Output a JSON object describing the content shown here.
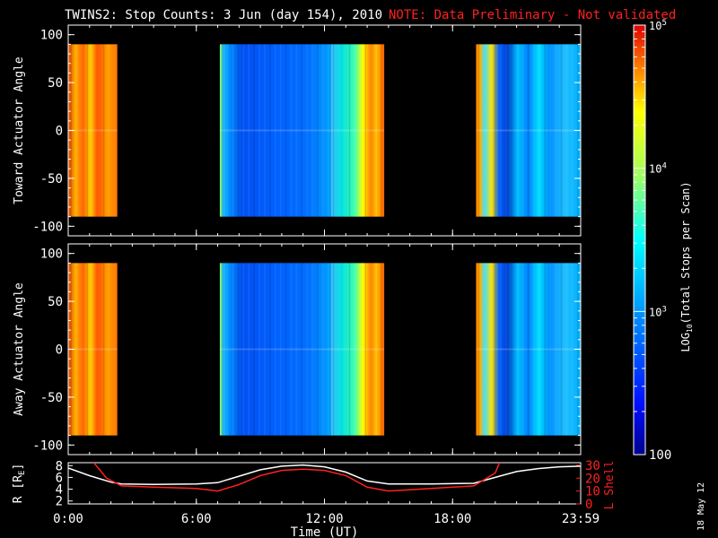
{
  "header": {
    "title": "TWINS2: Stop Counts:  3 Jun (day 154), 2010",
    "note": "NOTE: Data Preliminary - Not validated",
    "note_color": "#ff2020"
  },
  "side_date": "18 May 12",
  "chart_data": [
    {
      "type": "heatmap",
      "panel": "top",
      "ylabel": "Toward Actuator Angle",
      "ylim": [
        -110,
        110
      ],
      "yticks": [
        "100",
        "50",
        "0",
        "-50",
        "-100"
      ],
      "x_range_hours": [
        0,
        24
      ],
      "data_y_range": [
        -90,
        90
      ],
      "segments": [
        {
          "start_hour": 0.0,
          "end_hour": 2.3,
          "level": "high",
          "log10_counts": 4.7
        },
        {
          "start_hour": 7.1,
          "end_hour": 12.3,
          "level": "low",
          "log10_counts": 2.5
        },
        {
          "start_hour": 12.3,
          "end_hour": 14.8,
          "level": "mid",
          "log10_counts": 3.2
        },
        {
          "start_hour": 19.1,
          "end_hour": 24.0,
          "level": "mixed",
          "log10_counts": 3.3
        }
      ]
    },
    {
      "type": "heatmap",
      "panel": "middle",
      "ylabel": "Away Actuator Angle",
      "ylim": [
        -110,
        110
      ],
      "yticks": [
        "100",
        "50",
        "0",
        "-50",
        "-100"
      ],
      "x_range_hours": [
        0,
        24
      ],
      "data_y_range": [
        -90,
        90
      ],
      "segments": [
        {
          "start_hour": 0.0,
          "end_hour": 2.3,
          "level": "high",
          "log10_counts": 4.6
        },
        {
          "start_hour": 7.1,
          "end_hour": 12.3,
          "level": "low",
          "log10_counts": 2.4
        },
        {
          "start_hour": 12.3,
          "end_hour": 14.8,
          "level": "mid",
          "log10_counts": 3.1
        },
        {
          "start_hour": 19.1,
          "end_hour": 24.0,
          "level": "mixed",
          "log10_counts": 3.3
        }
      ]
    },
    {
      "type": "line",
      "panel": "bottom",
      "ylabel_left": "R [R",
      "ylabel_left_sub": "E",
      "ylabel_left_end": "]",
      "ylabel_right": "L Shell",
      "yticks_left": [
        "8",
        "6",
        "4",
        "2"
      ],
      "yticks_right": [
        "30",
        "20",
        "10",
        "0"
      ],
      "ylim_left": [
        1.5,
        8.5
      ],
      "ylim_right": [
        0,
        32
      ],
      "xticks": [
        "0:00",
        "6:00",
        "12:00",
        "18:00",
        "23:59"
      ],
      "xlabel": "Time (UT)",
      "series": [
        {
          "axis": "left",
          "color": "#ffffff",
          "x": [
            0,
            1,
            2,
            2.5,
            4,
            6,
            7,
            8,
            9,
            10,
            11,
            12,
            13,
            14,
            15,
            17,
            19,
            20,
            21,
            22,
            23,
            24
          ],
          "y": [
            7.6,
            6.3,
            5.2,
            4.9,
            4.8,
            4.9,
            5.1,
            6.2,
            7.3,
            7.9,
            8.1,
            7.8,
            6.9,
            5.4,
            4.9,
            4.9,
            5.0,
            6.0,
            7.0,
            7.5,
            7.8,
            7.9
          ]
        },
        {
          "axis": "right",
          "color": "#ff2020",
          "x": [
            1.2,
            1.8,
            2.5,
            4,
            6,
            7,
            8,
            9,
            10,
            11,
            12,
            13,
            14,
            15,
            17,
            19,
            20,
            20.2
          ],
          "y": [
            32,
            20,
            14,
            13,
            12,
            10,
            15,
            22,
            26,
            27,
            26,
            22,
            13,
            10,
            12,
            14,
            24,
            32
          ]
        }
      ]
    },
    {
      "type": "heatmap",
      "panel": "colorbar",
      "ylabel": "LOG10(Total Stops per Scan)",
      "ylabel_main": "LOG",
      "ylabel_sub": "10",
      "ylabel_rest": "(Total Stops per Scan)",
      "scale": "log",
      "ylim": [
        100,
        100000
      ],
      "ticks": [
        "10^5",
        "10^4",
        "10^3",
        "100"
      ],
      "tick_base": "10",
      "tick_exponents": [
        "5",
        "4",
        "3"
      ],
      "tick_plain": "100"
    }
  ]
}
